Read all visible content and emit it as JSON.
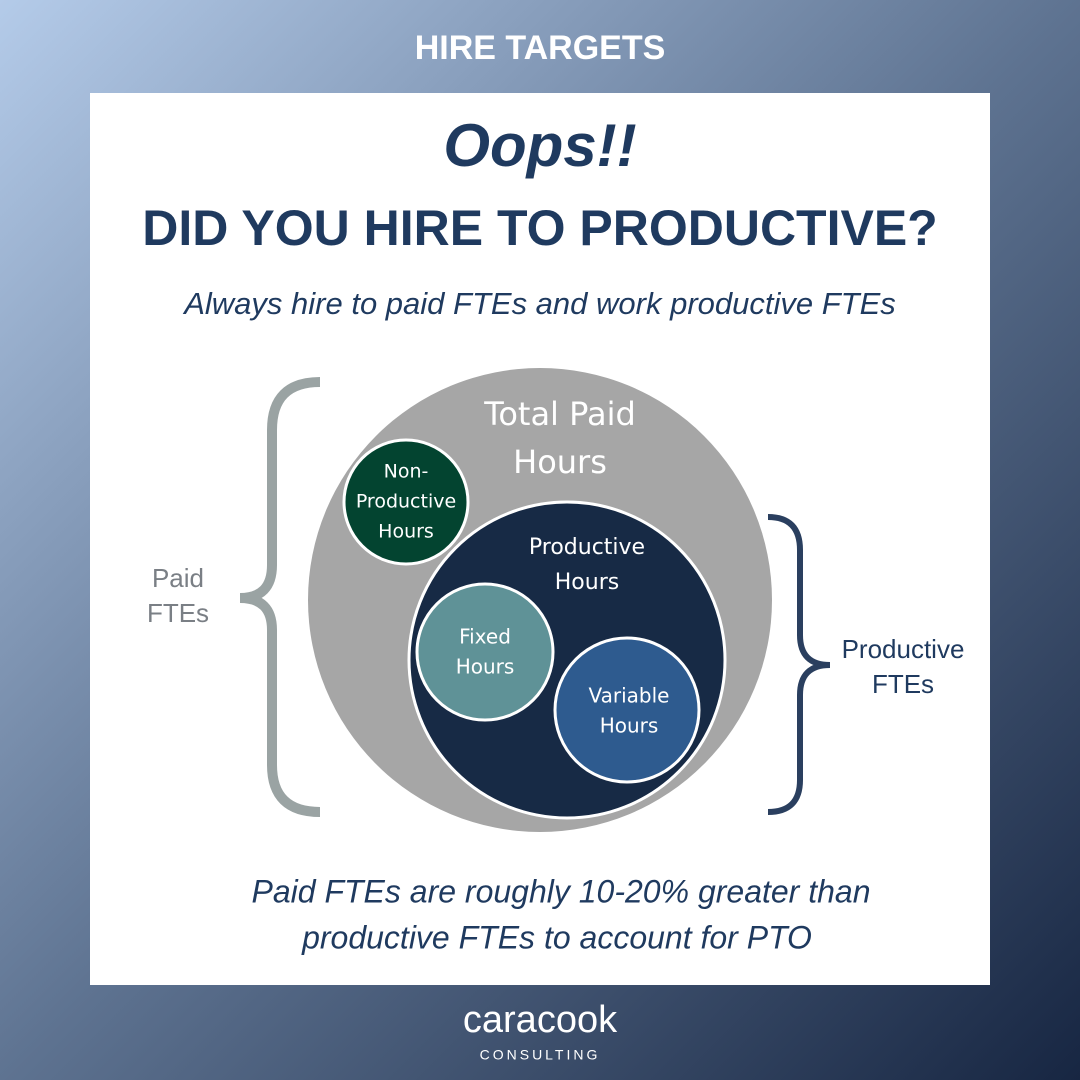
{
  "header": {
    "title": "HIRE TARGETS"
  },
  "card": {
    "exclamation": "Oops!!",
    "heading": "DID YOU HIRE TO PRODUCTIVE?",
    "subheading": "Always hire to paid FTEs and work productive FTEs",
    "diagram": {
      "nodes": [
        {
          "label_lines": [
            "Total Paid",
            "Hours"
          ]
        },
        {
          "label_lines": [
            "Non-",
            "Productive",
            "Hours"
          ]
        },
        {
          "label_lines": [
            "Productive",
            "Hours"
          ]
        },
        {
          "label_lines": [
            "Fixed",
            "Hours"
          ]
        },
        {
          "label_lines": [
            "Variable",
            "Hours"
          ]
        }
      ],
      "brackets": [
        {
          "label_lines": [
            "Paid",
            "FTEs"
          ]
        },
        {
          "label_lines": [
            "Productive",
            "FTEs"
          ]
        }
      ]
    },
    "note_lines": [
      "Paid FTEs are roughly 10-20% greater than",
      "productive FTEs to account for PTO"
    ]
  },
  "logo": {
    "name": "caracook",
    "tagline": "CONSULTING"
  }
}
